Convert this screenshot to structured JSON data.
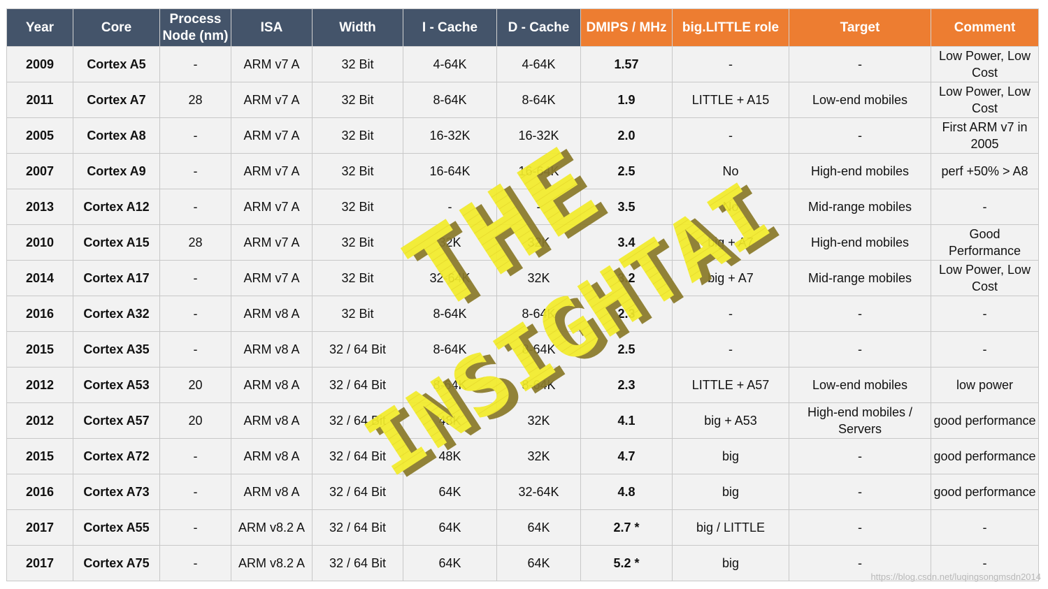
{
  "table": {
    "headers": [
      "Year",
      "Core",
      "Process Node (nm)",
      "ISA",
      "Width",
      "I - Cache",
      "D - Cache",
      "DMIPS / MHz",
      "big.LITTLE role",
      "Target",
      "Comment"
    ],
    "rows": [
      [
        "2009",
        "Cortex A5",
        "-",
        "ARM v7 A",
        "32 Bit",
        "4-64K",
        "4-64K",
        "1.57",
        "-",
        "-",
        "Low Power, Low Cost"
      ],
      [
        "2011",
        "Cortex A7",
        "28",
        "ARM v7 A",
        "32 Bit",
        "8-64K",
        "8-64K",
        "1.9",
        "LITTLE + A15",
        "Low-end mobiles",
        "Low Power, Low Cost"
      ],
      [
        "2005",
        "Cortex A8",
        "-",
        "ARM v7 A",
        "32 Bit",
        "16-32K",
        "16-32K",
        "2.0",
        "-",
        "-",
        "First ARM v7 in 2005"
      ],
      [
        "2007",
        "Cortex A9",
        "-",
        "ARM v7 A",
        "32 Bit",
        "16-64K",
        "16-64K",
        "2.5",
        "No",
        "High-end mobiles",
        "perf +50% > A8"
      ],
      [
        "2013",
        "Cortex A12",
        "-",
        "ARM v7 A",
        "32 Bit",
        "-",
        "-",
        "3.5",
        "No",
        "Mid-range mobiles",
        "-"
      ],
      [
        "2010",
        "Cortex A15",
        "28",
        "ARM v7 A",
        "32 Bit",
        "32K",
        "32K",
        "3.4",
        "big + A7",
        "High-end mobiles",
        "Good Performance"
      ],
      [
        "2014",
        "Cortex A17",
        "-",
        "ARM v7 A",
        "32 Bit",
        "32-64K",
        "32K",
        "3.2",
        "big + A7",
        "Mid-range mobiles",
        "Low Power, Low Cost"
      ],
      [
        "2016",
        "Cortex A32",
        "-",
        "ARM v8 A",
        "32 Bit",
        "8-64K",
        "8-64K",
        "2.3",
        "-",
        "-",
        "-"
      ],
      [
        "2015",
        "Cortex A35",
        "-",
        "ARM v8 A",
        "32 / 64 Bit",
        "8-64K",
        "8-64K",
        "2.5",
        "-",
        "-",
        "-"
      ],
      [
        "2012",
        "Cortex A53",
        "20",
        "ARM v8 A",
        "32 / 64 Bit",
        "8-64K",
        "8-64K",
        "2.3",
        "LITTLE + A57",
        "Low-end mobiles",
        "low power"
      ],
      [
        "2012",
        "Cortex A57",
        "20",
        "ARM v8 A",
        "32 / 64 Bit",
        "48K",
        "32K",
        "4.1",
        "big + A53",
        "High-end mobiles / Servers",
        "good performance"
      ],
      [
        "2015",
        "Cortex A72",
        "-",
        "ARM v8 A",
        "32 / 64 Bit",
        "48K",
        "32K",
        "4.7",
        "big",
        "-",
        "good performance"
      ],
      [
        "2016",
        "Cortex A73",
        "-",
        "ARM v8 A",
        "32 / 64 Bit",
        "64K",
        "32-64K",
        "4.8",
        "big",
        "-",
        "good performance"
      ],
      [
        "2017",
        "Cortex A55",
        "-",
        "ARM v8.2 A",
        "32 / 64 Bit",
        "64K",
        "64K",
        "2.7 *",
        "big / LITTLE",
        "-",
        "-"
      ],
      [
        "2017",
        "Cortex A75",
        "-",
        "ARM v8.2 A",
        "32 / 64 Bit",
        "64K",
        "64K",
        "5.2 *",
        "big",
        "-",
        "-"
      ]
    ]
  },
  "watermark": {
    "line1": "THE",
    "line2": "INSIGHTAI"
  },
  "footer_url": "https://blog.csdn.net/luqingsongmsdn2014",
  "colors": {
    "header_gray": "#44546a",
    "header_orange": "#ed7d31",
    "cell_bg": "#f2f2f2",
    "watermark": "#f2ec2c"
  }
}
